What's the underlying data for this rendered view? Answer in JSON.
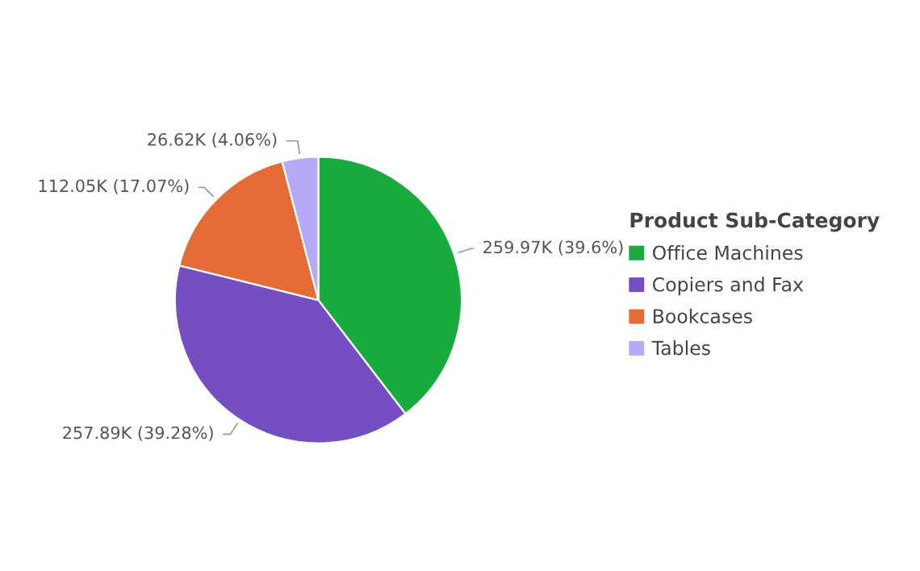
{
  "chart_data": {
    "type": "pie",
    "legend_title": "Product Sub-Category",
    "categories": [
      "Office Machines",
      "Copiers and Fax",
      "Bookcases",
      "Tables"
    ],
    "values": [
      259970,
      257890,
      112050,
      26620
    ],
    "value_labels": [
      "259.97K (39.6%)",
      "257.89K (39.28%)",
      "112.05K (17.07%)",
      "26.62K (4.06%)"
    ],
    "colors": [
      "#1aab40",
      "#744ec2",
      "#e66c37",
      "#b7a8f8"
    ],
    "legend": "right"
  }
}
